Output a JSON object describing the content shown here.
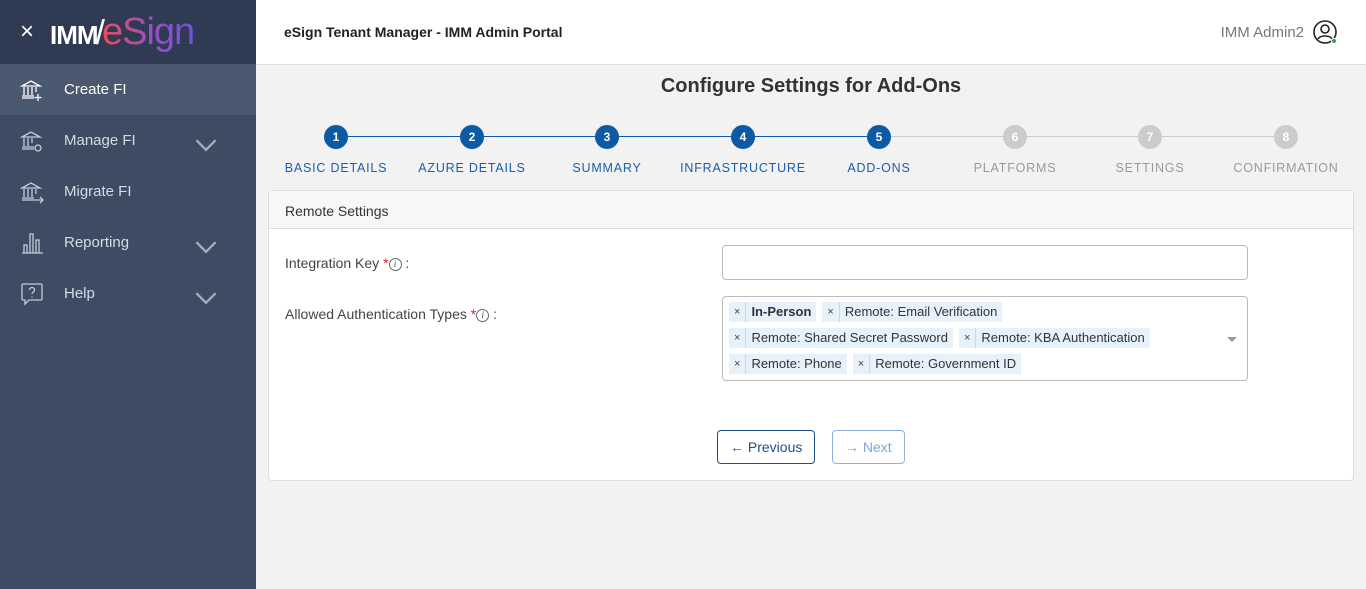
{
  "sidebar": {
    "logo": {
      "imm": "IMM",
      "slash": "/",
      "esign": "eSign"
    },
    "close": "×",
    "items": [
      {
        "label": "Create FI",
        "icon": "bank-plus-icon"
      },
      {
        "label": "Manage FI",
        "icon": "bank-gear-icon"
      },
      {
        "label": "Migrate FI",
        "icon": "bank-arrow-icon"
      },
      {
        "label": "Reporting",
        "icon": "bar-chart-icon"
      },
      {
        "label": "Help",
        "icon": "help-bubble-icon"
      }
    ]
  },
  "header": {
    "title": "eSign Tenant Manager - IMM Admin Portal",
    "user": "IMM Admin2"
  },
  "page": {
    "title": "Configure Settings for Add-Ons"
  },
  "steps": [
    {
      "n": "1",
      "label": "BASIC DETAILS",
      "done": true
    },
    {
      "n": "2",
      "label": "AZURE DETAILS",
      "done": true
    },
    {
      "n": "3",
      "label": "SUMMARY",
      "done": true
    },
    {
      "n": "4",
      "label": "INFRASTRUCTURE",
      "done": true
    },
    {
      "n": "5",
      "label": "ADD-ONS",
      "done": true
    },
    {
      "n": "6",
      "label": "PLATFORMS",
      "done": false
    },
    {
      "n": "7",
      "label": "SETTINGS",
      "done": false
    },
    {
      "n": "8",
      "label": "CONFIRMATION",
      "done": false
    }
  ],
  "form": {
    "section": "Remote Settings",
    "integration_key": {
      "label": "Integration Key",
      "required": "*",
      "info": "i",
      "suffix": ":",
      "value": ""
    },
    "auth_types": {
      "label": "Allowed Authentication Types",
      "required": "*",
      "info": "i",
      "suffix": ":",
      "selected": [
        "In-Person",
        "Remote: Email Verification",
        "Remote: Shared Secret Password",
        "Remote: KBA Authentication",
        "Remote: Phone",
        "Remote: Government ID"
      ],
      "remove": "×"
    }
  },
  "buttons": {
    "previous": "← Previous",
    "next": "→ Next"
  },
  "colors": {
    "accent": "#0b5aa3",
    "sidebar": "#3d4b63",
    "status_online": "#2ea44f"
  }
}
